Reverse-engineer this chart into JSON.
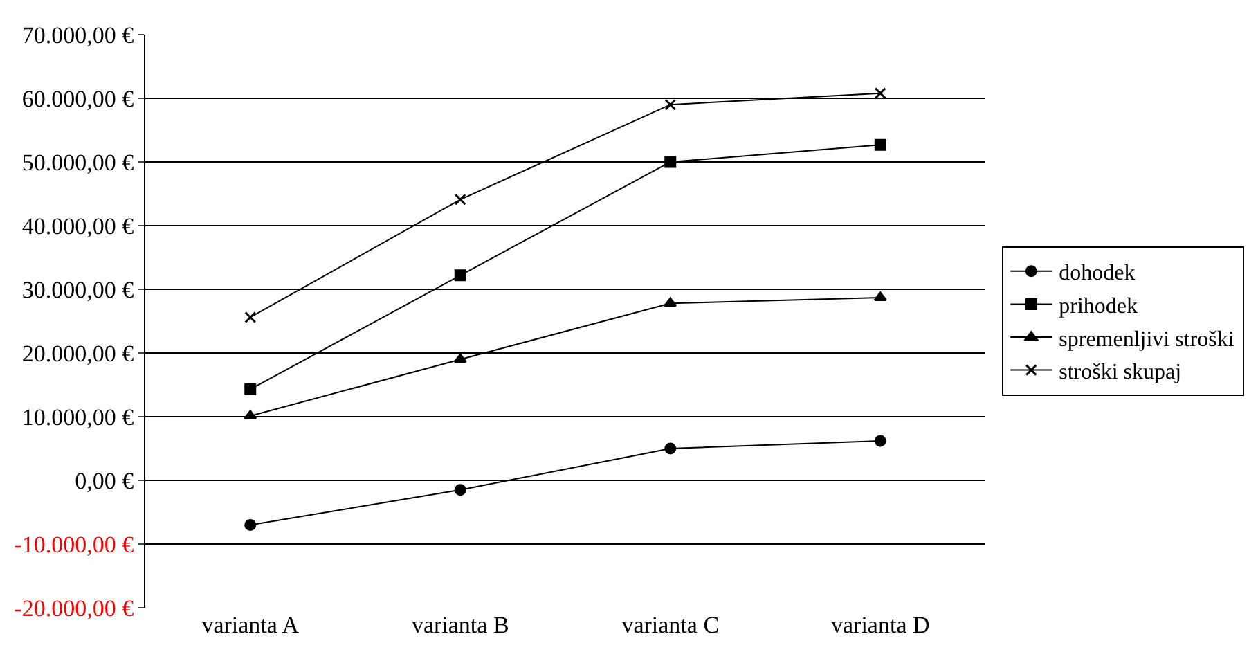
{
  "chart_data": {
    "type": "line",
    "categories": [
      "varianta A",
      "varianta B",
      "varianta C",
      "varianta D"
    ],
    "series": [
      {
        "name": "dohodek",
        "color": "#000000",
        "marker": "circle",
        "values": [
          -7000,
          -1500,
          5000,
          6200
        ]
      },
      {
        "name": "prihodek",
        "color": "#000000",
        "marker": "square",
        "values": [
          14300,
          32200,
          50000,
          52700
        ]
      },
      {
        "name": "spremenljivi stroški",
        "color": "#000000",
        "marker": "triangle",
        "values": [
          10100,
          19000,
          27800,
          28700
        ]
      },
      {
        "name": "stroški skupaj",
        "color": "#000000",
        "marker": "cross",
        "values": [
          25600,
          44100,
          59000,
          60800
        ]
      }
    ],
    "ylim": [
      -20000,
      70000
    ],
    "yticks": [
      {
        "value": -20000,
        "label": "-20.000,00 €"
      },
      {
        "value": -10000,
        "label": "-10.000,00 €"
      },
      {
        "value": 0,
        "label": "0,00 €"
      },
      {
        "value": 10000,
        "label": "10.000,00 €"
      },
      {
        "value": 20000,
        "label": "20.000,00 €"
      },
      {
        "value": 30000,
        "label": "30.000,00 €"
      },
      {
        "value": 40000,
        "label": "40.000,00 €"
      },
      {
        "value": 50000,
        "label": "50.000,00 €"
      },
      {
        "value": 60000,
        "label": "60.000,00 €"
      },
      {
        "value": 70000,
        "label": "70.000,00 €"
      }
    ],
    "grid": "y",
    "legend": "right",
    "line_style": "solid"
  }
}
